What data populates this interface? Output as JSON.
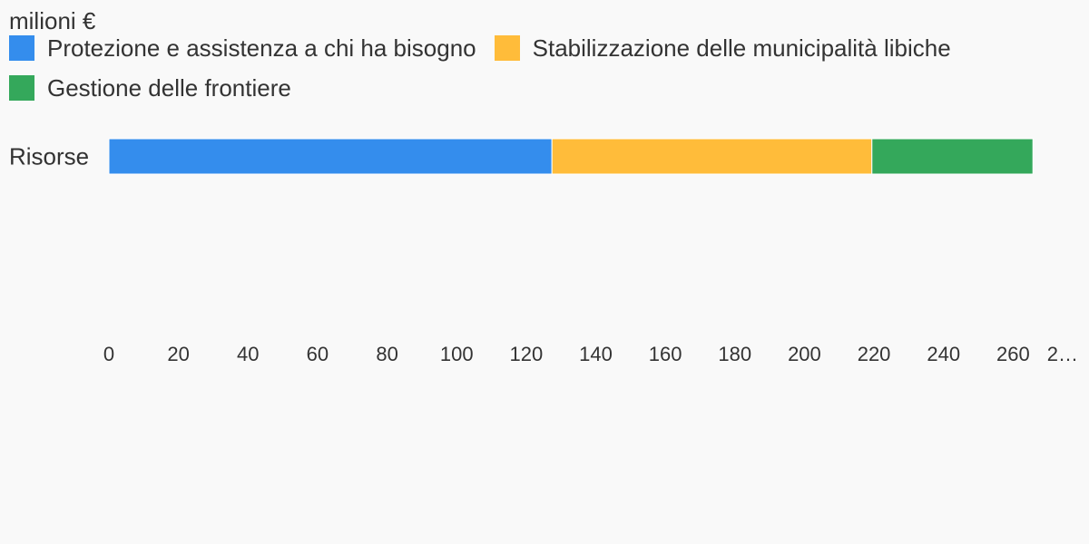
{
  "chart_data": {
    "type": "bar",
    "orientation": "horizontal",
    "stacked": true,
    "title": "milioni €",
    "categories": [
      "Risorse"
    ],
    "series": [
      {
        "name": "Protezione e assistenza a chi ha bisogno",
        "values": [
          127.4
        ],
        "color": "#348ded"
      },
      {
        "name": "Stabilizzazione delle municipalità libiche",
        "values": [
          92
        ],
        "color": "#ffbc3a"
      },
      {
        "name": "Gestione delle frontiere",
        "values": [
          46.3
        ],
        "color": "#34a85b"
      }
    ],
    "x_ticks": [
      "0",
      "20",
      "40",
      "60",
      "80",
      "100",
      "120",
      "140",
      "160",
      "180",
      "200",
      "220",
      "240",
      "260",
      "2…"
    ],
    "xlim": [
      0,
      280
    ],
    "grid": false,
    "legend_position": "top"
  }
}
